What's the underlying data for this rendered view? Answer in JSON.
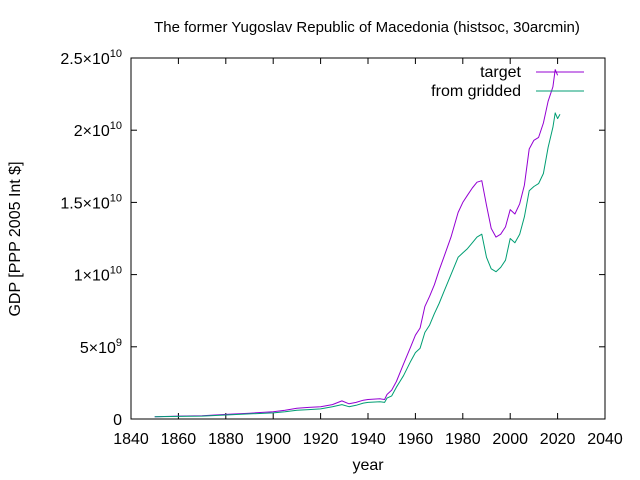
{
  "chart_data": {
    "type": "line",
    "title": "The former Yugoslav Republic of Macedonia (histsoc, 30arcmin)",
    "xlabel": "year",
    "ylabel": "GDP [PPP 2005 Int $]",
    "xlim": [
      1840,
      2040
    ],
    "ylim": [
      0,
      25000000000
    ],
    "x_ticks": [
      1840,
      1860,
      1880,
      1900,
      1920,
      1940,
      1960,
      1980,
      2000,
      2020,
      2040
    ],
    "x_tick_labels": [
      "1840",
      "1860",
      "1880",
      "1900",
      "1920",
      "1940",
      "1960",
      "1980",
      "2000",
      "2020",
      "2040"
    ],
    "y_ticks": [
      {
        "value": 0,
        "mantissa": "0",
        "exponent": ""
      },
      {
        "value": 5000000000,
        "mantissa": "5×10",
        "exponent": "9"
      },
      {
        "value": 10000000000,
        "mantissa": "1×10",
        "exponent": "10"
      },
      {
        "value": 15000000000,
        "mantissa": "1.5×10",
        "exponent": "10"
      },
      {
        "value": 20000000000,
        "mantissa": "2×10",
        "exponent": "10"
      },
      {
        "value": 25000000000,
        "mantissa": "2.5×10",
        "exponent": "10"
      }
    ],
    "grid": false,
    "legend_position": "top-right",
    "series": [
      {
        "name": "target",
        "color": "#9400d3",
        "points": [
          [
            1850,
            150000000.0
          ],
          [
            1860,
            200000000.0
          ],
          [
            1870,
            230000000.0
          ],
          [
            1880,
            320000000.0
          ],
          [
            1890,
            400000000.0
          ],
          [
            1900,
            500000000.0
          ],
          [
            1905,
            600000000.0
          ],
          [
            1910,
            750000000.0
          ],
          [
            1915,
            800000000.0
          ],
          [
            1920,
            850000000.0
          ],
          [
            1925,
            1000000000.0
          ],
          [
            1929,
            1250000000.0
          ],
          [
            1932,
            1050000000.0
          ],
          [
            1935,
            1150000000.0
          ],
          [
            1938,
            1300000000.0
          ],
          [
            1940,
            1350000000.0
          ],
          [
            1945,
            1400000000.0
          ],
          [
            1947,
            1350000000.0
          ],
          [
            1948,
            1700000000.0
          ],
          [
            1950,
            2000000000.0
          ],
          [
            1952,
            2600000000.0
          ],
          [
            1955,
            3800000000.0
          ],
          [
            1958,
            5000000000.0
          ],
          [
            1960,
            5800000000.0
          ],
          [
            1962,
            6300000000.0
          ],
          [
            1964,
            7800000000.0
          ],
          [
            1966,
            8500000000.0
          ],
          [
            1968,
            9300000000.0
          ],
          [
            1970,
            10300000000.0
          ],
          [
            1972,
            11200000000.0
          ],
          [
            1975,
            12600000000.0
          ],
          [
            1978,
            14300000000.0
          ],
          [
            1980,
            15000000000.0
          ],
          [
            1982,
            15500000000.0
          ],
          [
            1984,
            16000000000.0
          ],
          [
            1986,
            16400000000.0
          ],
          [
            1988,
            16500000000.0
          ],
          [
            1990,
            14800000000.0
          ],
          [
            1992,
            13200000000.0
          ],
          [
            1994,
            12600000000.0
          ],
          [
            1996,
            12800000000.0
          ],
          [
            1998,
            13300000000.0
          ],
          [
            2000,
            14500000000.0
          ],
          [
            2002,
            14200000000.0
          ],
          [
            2004,
            14900000000.0
          ],
          [
            2006,
            16200000000.0
          ],
          [
            2008,
            18700000000.0
          ],
          [
            2010,
            19300000000.0
          ],
          [
            2012,
            19500000000.0
          ],
          [
            2014,
            20500000000.0
          ],
          [
            2016,
            22000000000.0
          ],
          [
            2018,
            23000000000.0
          ],
          [
            2019,
            24200000000.0
          ],
          [
            2020,
            23800000000.0
          ]
        ]
      },
      {
        "name": "from gridded",
        "color": "#009e73",
        "points": [
          [
            1850,
            150000000.0
          ],
          [
            1860,
            180000000.0
          ],
          [
            1870,
            200000000.0
          ],
          [
            1880,
            280000000.0
          ],
          [
            1890,
            350000000.0
          ],
          [
            1900,
            420000000.0
          ],
          [
            1905,
            500000000.0
          ],
          [
            1910,
            600000000.0
          ],
          [
            1915,
            650000000.0
          ],
          [
            1920,
            700000000.0
          ],
          [
            1925,
            850000000.0
          ],
          [
            1929,
            1000000000.0
          ],
          [
            1932,
            850000000.0
          ],
          [
            1935,
            950000000.0
          ],
          [
            1938,
            1100000000.0
          ],
          [
            1940,
            1150000000.0
          ],
          [
            1945,
            1200000000.0
          ],
          [
            1947,
            1150000000.0
          ],
          [
            1948,
            1450000000.0
          ],
          [
            1950,
            1600000000.0
          ],
          [
            1952,
            2200000000.0
          ],
          [
            1955,
            3000000000.0
          ],
          [
            1958,
            4000000000.0
          ],
          [
            1960,
            4600000000.0
          ],
          [
            1962,
            4900000000.0
          ],
          [
            1964,
            6000000000.0
          ],
          [
            1966,
            6500000000.0
          ],
          [
            1968,
            7300000000.0
          ],
          [
            1970,
            8000000000.0
          ],
          [
            1972,
            8800000000.0
          ],
          [
            1975,
            10000000000.0
          ],
          [
            1978,
            11200000000.0
          ],
          [
            1980,
            11500000000.0
          ],
          [
            1982,
            11800000000.0
          ],
          [
            1984,
            12200000000.0
          ],
          [
            1986,
            12600000000.0
          ],
          [
            1988,
            12800000000.0
          ],
          [
            1990,
            11200000000.0
          ],
          [
            1992,
            10400000000.0
          ],
          [
            1994,
            10200000000.0
          ],
          [
            1996,
            10500000000.0
          ],
          [
            1998,
            11000000000.0
          ],
          [
            2000,
            12500000000.0
          ],
          [
            2002,
            12200000000.0
          ],
          [
            2004,
            12800000000.0
          ],
          [
            2006,
            14000000000.0
          ],
          [
            2008,
            15800000000.0
          ],
          [
            2010,
            16100000000.0
          ],
          [
            2012,
            16300000000.0
          ],
          [
            2014,
            17000000000.0
          ],
          [
            2016,
            18800000000.0
          ],
          [
            2018,
            20200000000.0
          ],
          [
            2019,
            21200000000.0
          ],
          [
            2020,
            20800000000.0
          ],
          [
            2021,
            21100000000.0
          ]
        ]
      }
    ]
  }
}
